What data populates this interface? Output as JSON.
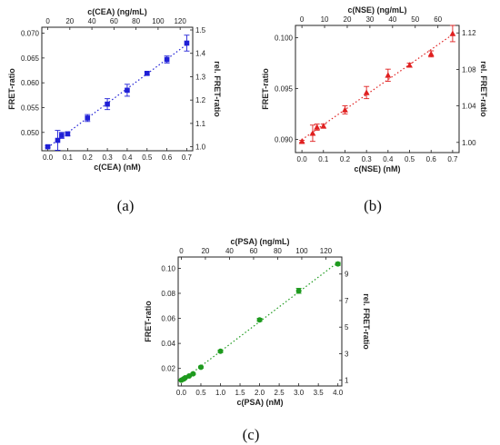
{
  "captions": [
    "(a)",
    "(b)",
    "(c)"
  ],
  "chart_data": [
    {
      "id": "a",
      "type": "scatter",
      "color": "#1f1fd6",
      "marker": "square",
      "xlabel": "c(CEA) (nM)",
      "x2label": "c(CEA) (ng/mL)",
      "ylabel": "FRET-ratio",
      "y2label": "rel. FRET-ratio",
      "xlim": [
        -0.03,
        0.73
      ],
      "ylim": [
        0.0463,
        0.0712
      ],
      "xticks": [
        "0.0",
        "0.1",
        "0.2",
        "0.3",
        "0.4",
        "0.5",
        "0.6",
        "0.7"
      ],
      "yticks": [
        "0.050",
        "0.055",
        "0.060",
        "0.065",
        "0.070"
      ],
      "x2ticks": [
        "0",
        "20",
        "40",
        "60",
        "80",
        "100",
        "120"
      ],
      "x2_scale": 180,
      "y2ticks": [
        "1.0",
        "1.1",
        "1.2",
        "1.3",
        "1.4",
        "1.5"
      ],
      "y2_base": 0.0471,
      "x": [
        0.0,
        0.05,
        0.07,
        0.1,
        0.2,
        0.3,
        0.4,
        0.5,
        0.6,
        0.7
      ],
      "y": [
        0.0471,
        0.0484,
        0.0494,
        0.0497,
        0.0529,
        0.0557,
        0.0585,
        0.0619,
        0.0647,
        0.068
      ],
      "yerr": [
        0.0002,
        0.002,
        0.0006,
        0.0004,
        0.0007,
        0.0011,
        0.0012,
        0.0003,
        0.0007,
        0.0016
      ]
    },
    {
      "id": "b",
      "type": "scatter",
      "color": "#e02020",
      "marker": "triangle",
      "xlabel": "c(NSE) (nM)",
      "x2label": "c(NSE) (ng/mL)",
      "ylabel": "FRET-ratio",
      "y2label": "rel. FRET-ratio",
      "xlim": [
        -0.03,
        0.73
      ],
      "ylim": [
        0.0887,
        0.1012
      ],
      "xticks": [
        "0.0",
        "0.1",
        "0.2",
        "0.3",
        "0.4",
        "0.5",
        "0.6",
        "0.7"
      ],
      "yticks": [
        "0.090",
        "0.095",
        "0.100"
      ],
      "x2ticks": [
        "0",
        "10",
        "20",
        "30",
        "40",
        "50",
        "60"
      ],
      "x2_scale": 95,
      "y2ticks": [
        "1.00",
        "1.04",
        "1.08",
        "1.12"
      ],
      "y2_base": 0.0897,
      "x": [
        0.0,
        0.05,
        0.07,
        0.1,
        0.2,
        0.3,
        0.4,
        0.5,
        0.6,
        0.7
      ],
      "y": [
        0.0898,
        0.0906,
        0.0912,
        0.0913,
        0.0929,
        0.0946,
        0.0963,
        0.0973,
        0.0984,
        0.1004
      ],
      "yerr": [
        0.0001,
        0.0008,
        0.0003,
        0.0002,
        0.0004,
        0.0006,
        0.0006,
        0.0002,
        0.0003,
        0.0008
      ]
    },
    {
      "id": "c",
      "type": "scatter",
      "color": "#1e9a1e",
      "marker": "circle",
      "xlabel": "c(PSA) (nM)",
      "x2label": "c(PSA) (ng/mL)",
      "ylabel": "FRET-ratio",
      "y2label": "rel. FRET-ratio",
      "xlim": [
        -0.08,
        4.1
      ],
      "ylim": [
        0.006,
        0.109
      ],
      "xticks": [
        "0.0",
        "0.5",
        "1.0",
        "1.5",
        "2.0",
        "2.5",
        "3.0",
        "3.5",
        "4.0"
      ],
      "yticks": [
        "0.02",
        "0.04",
        "0.06",
        "0.08",
        "0.10"
      ],
      "x2ticks": [
        "0",
        "20",
        "40",
        "60",
        "80",
        "100",
        "120"
      ],
      "x2_scale": 32.5,
      "y2ticks": [
        "1",
        "3",
        "5",
        "7",
        "9"
      ],
      "y2_base": 0.0106,
      "x": [
        0.0,
        0.05,
        0.07,
        0.1,
        0.2,
        0.3,
        0.5,
        1.0,
        2.0,
        3.0,
        4.0
      ],
      "y": [
        0.0106,
        0.0114,
        0.0118,
        0.0125,
        0.014,
        0.0157,
        0.021,
        0.0337,
        0.0588,
        0.082,
        0.1035
      ],
      "yerr": [
        0.0004,
        0.0005,
        0.0004,
        0.0004,
        0.0005,
        0.0006,
        0.0008,
        0.001,
        0.0012,
        0.002,
        0.0012
      ]
    }
  ]
}
